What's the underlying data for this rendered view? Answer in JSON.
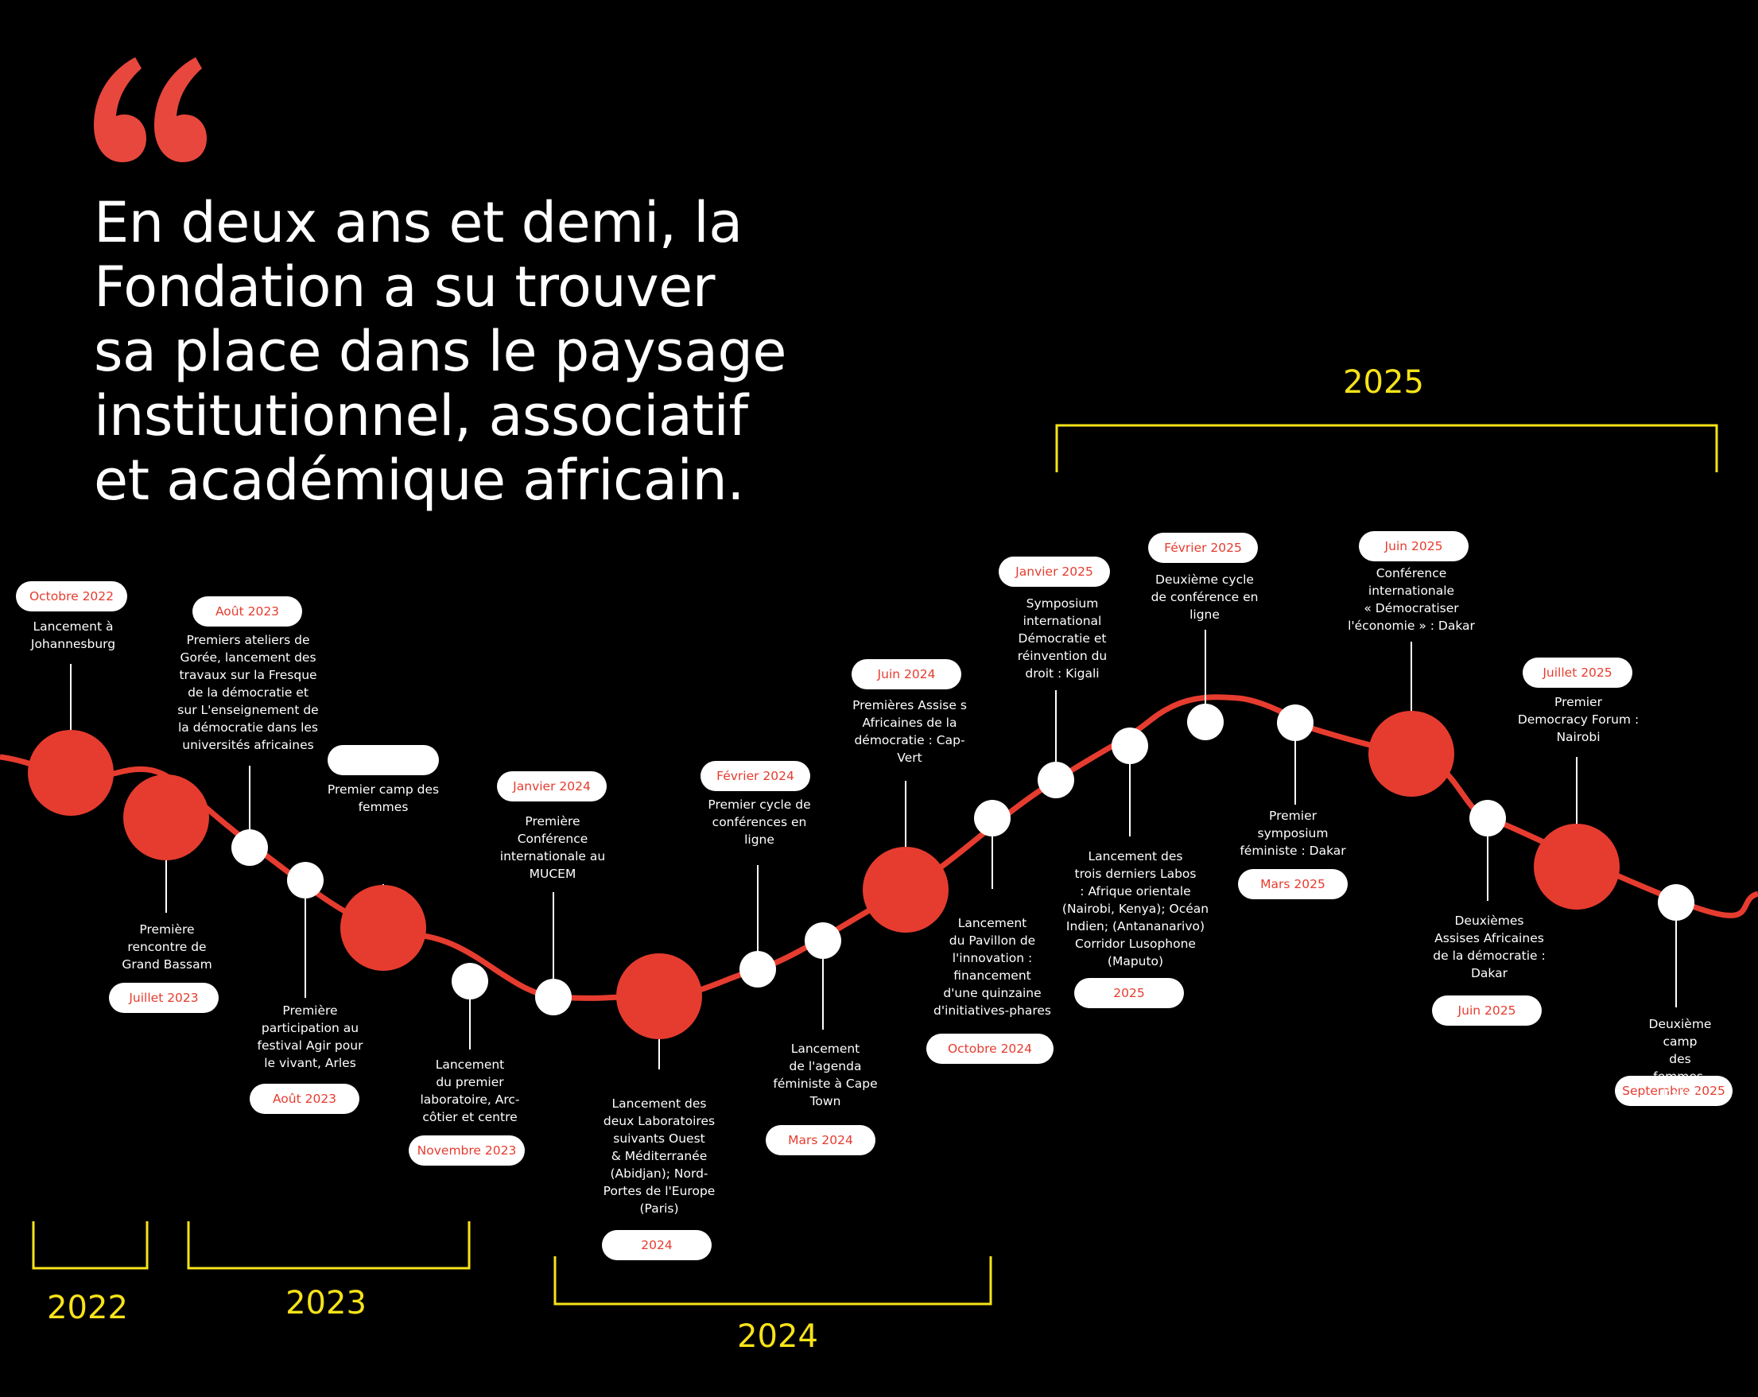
{
  "headline": {
    "lines": [
      "En deux ans et demi, la",
      "Fondation a su trouver",
      "sa place dans le paysage",
      "institutionnel, associatif",
      "et académique africain."
    ]
  },
  "colors": {
    "background": "#000000",
    "timeline_line": "#e63c2f",
    "major_node": "#e63c2f",
    "minor_node": "#ffffff",
    "year_bracket": "#f7e319",
    "pill_text": "#e63c2f",
    "quote_mark": "#e8473e"
  },
  "icons": {
    "quote": "opening-quote-icon"
  },
  "years": [
    "2022",
    "2023",
    "2024",
    "2025"
  ],
  "events": [
    {
      "date": "Octobre 2022",
      "text": "Lancement à\nJohannesburg",
      "node": "major"
    },
    {
      "date": "Juillet 2023",
      "text": "Première\nrencontre de\nGrand Bassam",
      "node": "major"
    },
    {
      "date": "Août 2023",
      "text": "Premiers ateliers de\nGorée, lancement des\ntravaux sur la Fresque\nde la démocratie et\nsur L'enseignement de\nla démocratie dans les\nuniversités africaines",
      "node": "minor"
    },
    {
      "date": "Août 2023",
      "text": "Première\nparticipation au\nfestival Agir pour\nle vivant, Arles",
      "node": "minor"
    },
    {
      "date": "",
      "text": "Premier camp des\nfemmes",
      "node": "major"
    },
    {
      "date": "Novembre  2023",
      "text": "Lancement\ndu premier\nlaboratoire, Arc-\ncôtier et centre",
      "node": "minor"
    },
    {
      "date": "Janvier 2024",
      "text": "Première\nConférence\ninternationale au\nMUCEM",
      "node": "minor"
    },
    {
      "date": "2024",
      "text": "Lancement des\ndeux Laboratoires\nsuivants Ouest\n& Méditerranée\n(Abidjan); Nord-\nPortes de l'Europe\n(Paris)",
      "node": "major"
    },
    {
      "date": "Février 2024",
      "text": "Premier cycle de\nconférences en\nligne",
      "node": "minor"
    },
    {
      "date": "Mars 2024",
      "text": "Lancement\nde l'agenda\nféministe à Cape\nTown",
      "node": "minor"
    },
    {
      "date": "Juin 2024",
      "text": "Premières Assise s\nAfricaines de la\ndémocratie : Cap-\nVert",
      "node": "major"
    },
    {
      "date": "Octobre 2024",
      "text": "Lancement\ndu Pavillon de\nl'innovation :\nfinancement\nd'une quinzaine\nd'initiatives-phares",
      "node": "minor"
    },
    {
      "date": "Janvier 2025",
      "text": "Symposium\ninternational\nDémocratie et\nréinvention du\ndroit : Kigali",
      "node": "minor"
    },
    {
      "date": "2025",
      "text": "Lancement des\ntrois derniers Labos\n: Afrique orientale\n(Nairobi, Kenya); Océan\nIndien; (Antananarivo)\nCorridor Lusophone\n(Maputo)",
      "node": "minor"
    },
    {
      "date": "Février 2025",
      "text": "Deuxième cycle\nde conférence en\nligne",
      "node": "minor"
    },
    {
      "date": "Mars 2025",
      "text": "Premier\nsymposium\nféministe : Dakar",
      "node": "minor"
    },
    {
      "date": "Juin 2025",
      "text": "Conférence\ninternationale\n« Démocratiser\nl'économie » : Dakar",
      "node": "major"
    },
    {
      "date": "Juin 2025",
      "text": "Deuxièmes\nAssises Africaines\nde la démocratie :\nDakar",
      "node": "minor"
    },
    {
      "date": "Juillet 2025",
      "text": "Premier\nDemocracy Forum :\nNairobi",
      "node": "major"
    },
    {
      "date": "Septembre 2025",
      "text": "Deuxième camp\ndes femmes,\nDakar",
      "node": "minor"
    }
  ]
}
